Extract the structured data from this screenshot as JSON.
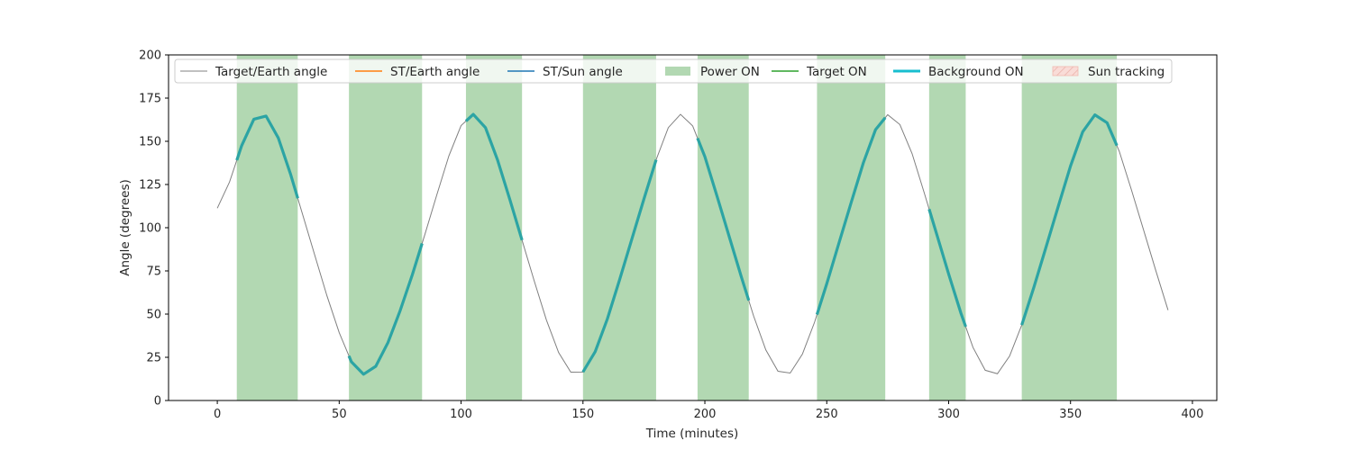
{
  "chart_data": {
    "type": "line",
    "xlabel": "Time (minutes)",
    "ylabel": "Angle (degrees)",
    "xlim": [
      -20,
      410
    ],
    "ylim": [
      0,
      200
    ],
    "x_ticks": [
      0,
      50,
      100,
      150,
      200,
      250,
      300,
      350,
      400
    ],
    "y_ticks": [
      0,
      25,
      50,
      75,
      100,
      125,
      150,
      175,
      200
    ],
    "grid": false,
    "legend_placement": "top",
    "curve": {
      "name": "Target/Earth angle",
      "x": [
        0,
        5,
        10,
        15,
        20,
        25,
        30,
        35,
        40,
        45,
        50,
        55,
        60,
        65,
        70,
        75,
        80,
        85,
        90,
        95,
        100,
        105,
        110,
        115,
        120,
        125,
        130,
        135,
        140,
        145,
        150,
        155,
        160,
        165,
        170,
        175,
        180,
        185,
        190,
        195,
        200,
        205,
        210,
        215,
        220,
        225,
        230,
        235,
        240,
        245,
        250,
        255,
        260,
        265,
        270,
        275,
        280,
        285,
        290,
        295,
        300,
        305,
        310,
        315,
        320,
        325,
        330,
        335,
        340,
        345,
        350,
        355,
        360,
        365,
        370,
        375,
        380,
        385,
        390
      ],
      "y": [
        111.3,
        126.4,
        147.5,
        162.8,
        164.6,
        152.0,
        131.2,
        107.6,
        84.0,
        60.5,
        39.3,
        22.4,
        15.2,
        19.8,
        33.5,
        52.0,
        72.8,
        95.4,
        118.8,
        141.6,
        159.1,
        165.6,
        157.9,
        139.0,
        116.3,
        92.8,
        69.2,
        46.6,
        27.8,
        16.4,
        16.5,
        28.2,
        47.2,
        69.8,
        93.2,
        116.6,
        139.3,
        157.9,
        165.6,
        158.9,
        141.1,
        118.2,
        94.8,
        71.4,
        48.9,
        29.3,
        16.9,
        15.9,
        26.8,
        45.3,
        67.6,
        91.1,
        114.5,
        137.5,
        156.7,
        165.4,
        159.7,
        142.9,
        120.1,
        96.7,
        73.2,
        50.7,
        30.7,
        17.5,
        15.5,
        25.7,
        43.7,
        65.7,
        89.0,
        112.5,
        135.7,
        155.5,
        165.3,
        160.7,
        144.2,
        121.8,
        98.5,
        75.1,
        52.3
      ]
    },
    "power_on_intervals": [
      [
        8,
        33
      ],
      [
        54,
        84
      ],
      [
        102,
        125
      ],
      [
        150,
        180
      ],
      [
        197,
        218
      ],
      [
        246,
        274
      ],
      [
        292,
        307
      ],
      [
        330,
        369
      ]
    ],
    "background_on_intervals": [
      [
        8,
        33
      ],
      [
        54,
        84
      ],
      [
        102,
        125
      ],
      [
        150,
        180
      ],
      [
        197,
        218
      ],
      [
        246,
        274
      ],
      [
        292,
        307
      ],
      [
        330,
        369
      ]
    ],
    "legend": [
      {
        "label": "Target/Earth angle",
        "kind": "line",
        "color": "#808080",
        "width": 1
      },
      {
        "label": "ST/Earth angle",
        "kind": "line",
        "color": "#ff7f0e",
        "width": 1.5
      },
      {
        "label": "ST/Sun angle",
        "kind": "line",
        "color": "#1f77b4",
        "width": 1.5
      },
      {
        "label": "Power ON",
        "kind": "patch",
        "color": "#b2d8b2"
      },
      {
        "label": "Target ON",
        "kind": "line",
        "color": "#2ca02c",
        "width": 1.5
      },
      {
        "label": "Background ON",
        "kind": "line",
        "color": "#17becf",
        "width": 3
      },
      {
        "label": "Sun tracking",
        "kind": "hatch",
        "color": "#f4c7c0"
      }
    ],
    "colors": {
      "target_earth": "#808080",
      "background_on": "#2ca4a4",
      "power_on": "#b2d8b2"
    }
  }
}
